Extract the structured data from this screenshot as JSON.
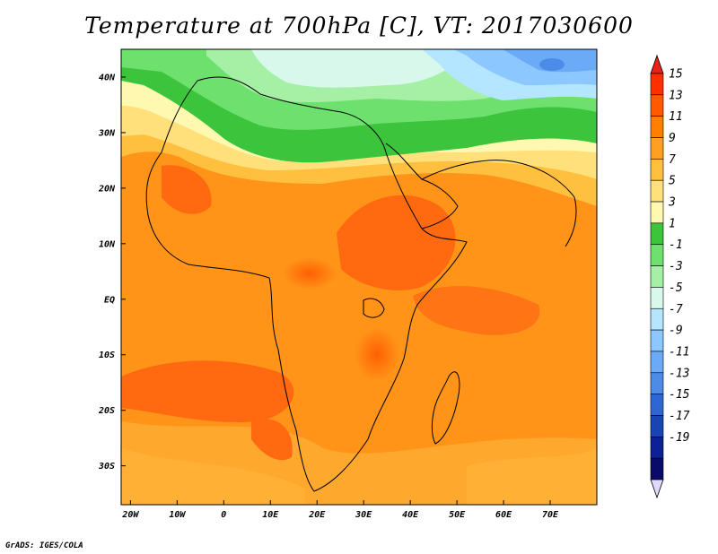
{
  "title": "Temperature at 700hPa [C], VT: 2017030600",
  "credit": "GrADS: IGES/COLA",
  "map": {
    "lon_range": [
      -22,
      80
    ],
    "lat_range": [
      -37,
      45
    ],
    "lat_ticks": [
      {
        "value": 40,
        "label": "40N"
      },
      {
        "value": 30,
        "label": "30N"
      },
      {
        "value": 20,
        "label": "20N"
      },
      {
        "value": 10,
        "label": "10N"
      },
      {
        "value": 0,
        "label": "EQ"
      },
      {
        "value": -10,
        "label": "10S"
      },
      {
        "value": -20,
        "label": "20S"
      },
      {
        "value": -30,
        "label": "30S"
      }
    ],
    "lon_ticks": [
      {
        "value": -20,
        "label": "20W"
      },
      {
        "value": -10,
        "label": "10W"
      },
      {
        "value": 0,
        "label": "0"
      },
      {
        "value": 10,
        "label": "10E"
      },
      {
        "value": 20,
        "label": "20E"
      },
      {
        "value": 30,
        "label": "30E"
      },
      {
        "value": 40,
        "label": "40E"
      },
      {
        "value": 50,
        "label": "50E"
      },
      {
        "value": 60,
        "label": "60E"
      },
      {
        "value": 70,
        "label": "70E"
      }
    ]
  },
  "colorbar": {
    "labels": [
      "15",
      "13",
      "11",
      "9",
      "7",
      "5",
      "3",
      "1",
      "-1",
      "-3",
      "-5",
      "-7",
      "-9",
      "-11",
      "-13",
      "-15",
      "-17",
      "-19"
    ],
    "colors": [
      "#ff2f00",
      "#ff5a00",
      "#ff8000",
      "#ffa020",
      "#ffc040",
      "#ffe07a",
      "#fff8b0",
      "#3cc43c",
      "#6ee06e",
      "#a6f0a6",
      "#d8f8ec",
      "#b4e6ff",
      "#8cc8ff",
      "#6aaaf6",
      "#4c8ce6",
      "#2e66d4",
      "#1844b4",
      "#0a2296",
      "#0a0a68"
    ],
    "top_arrow_color": "#e8221a",
    "bottom_arrow_color": "#e0d8ff"
  }
}
